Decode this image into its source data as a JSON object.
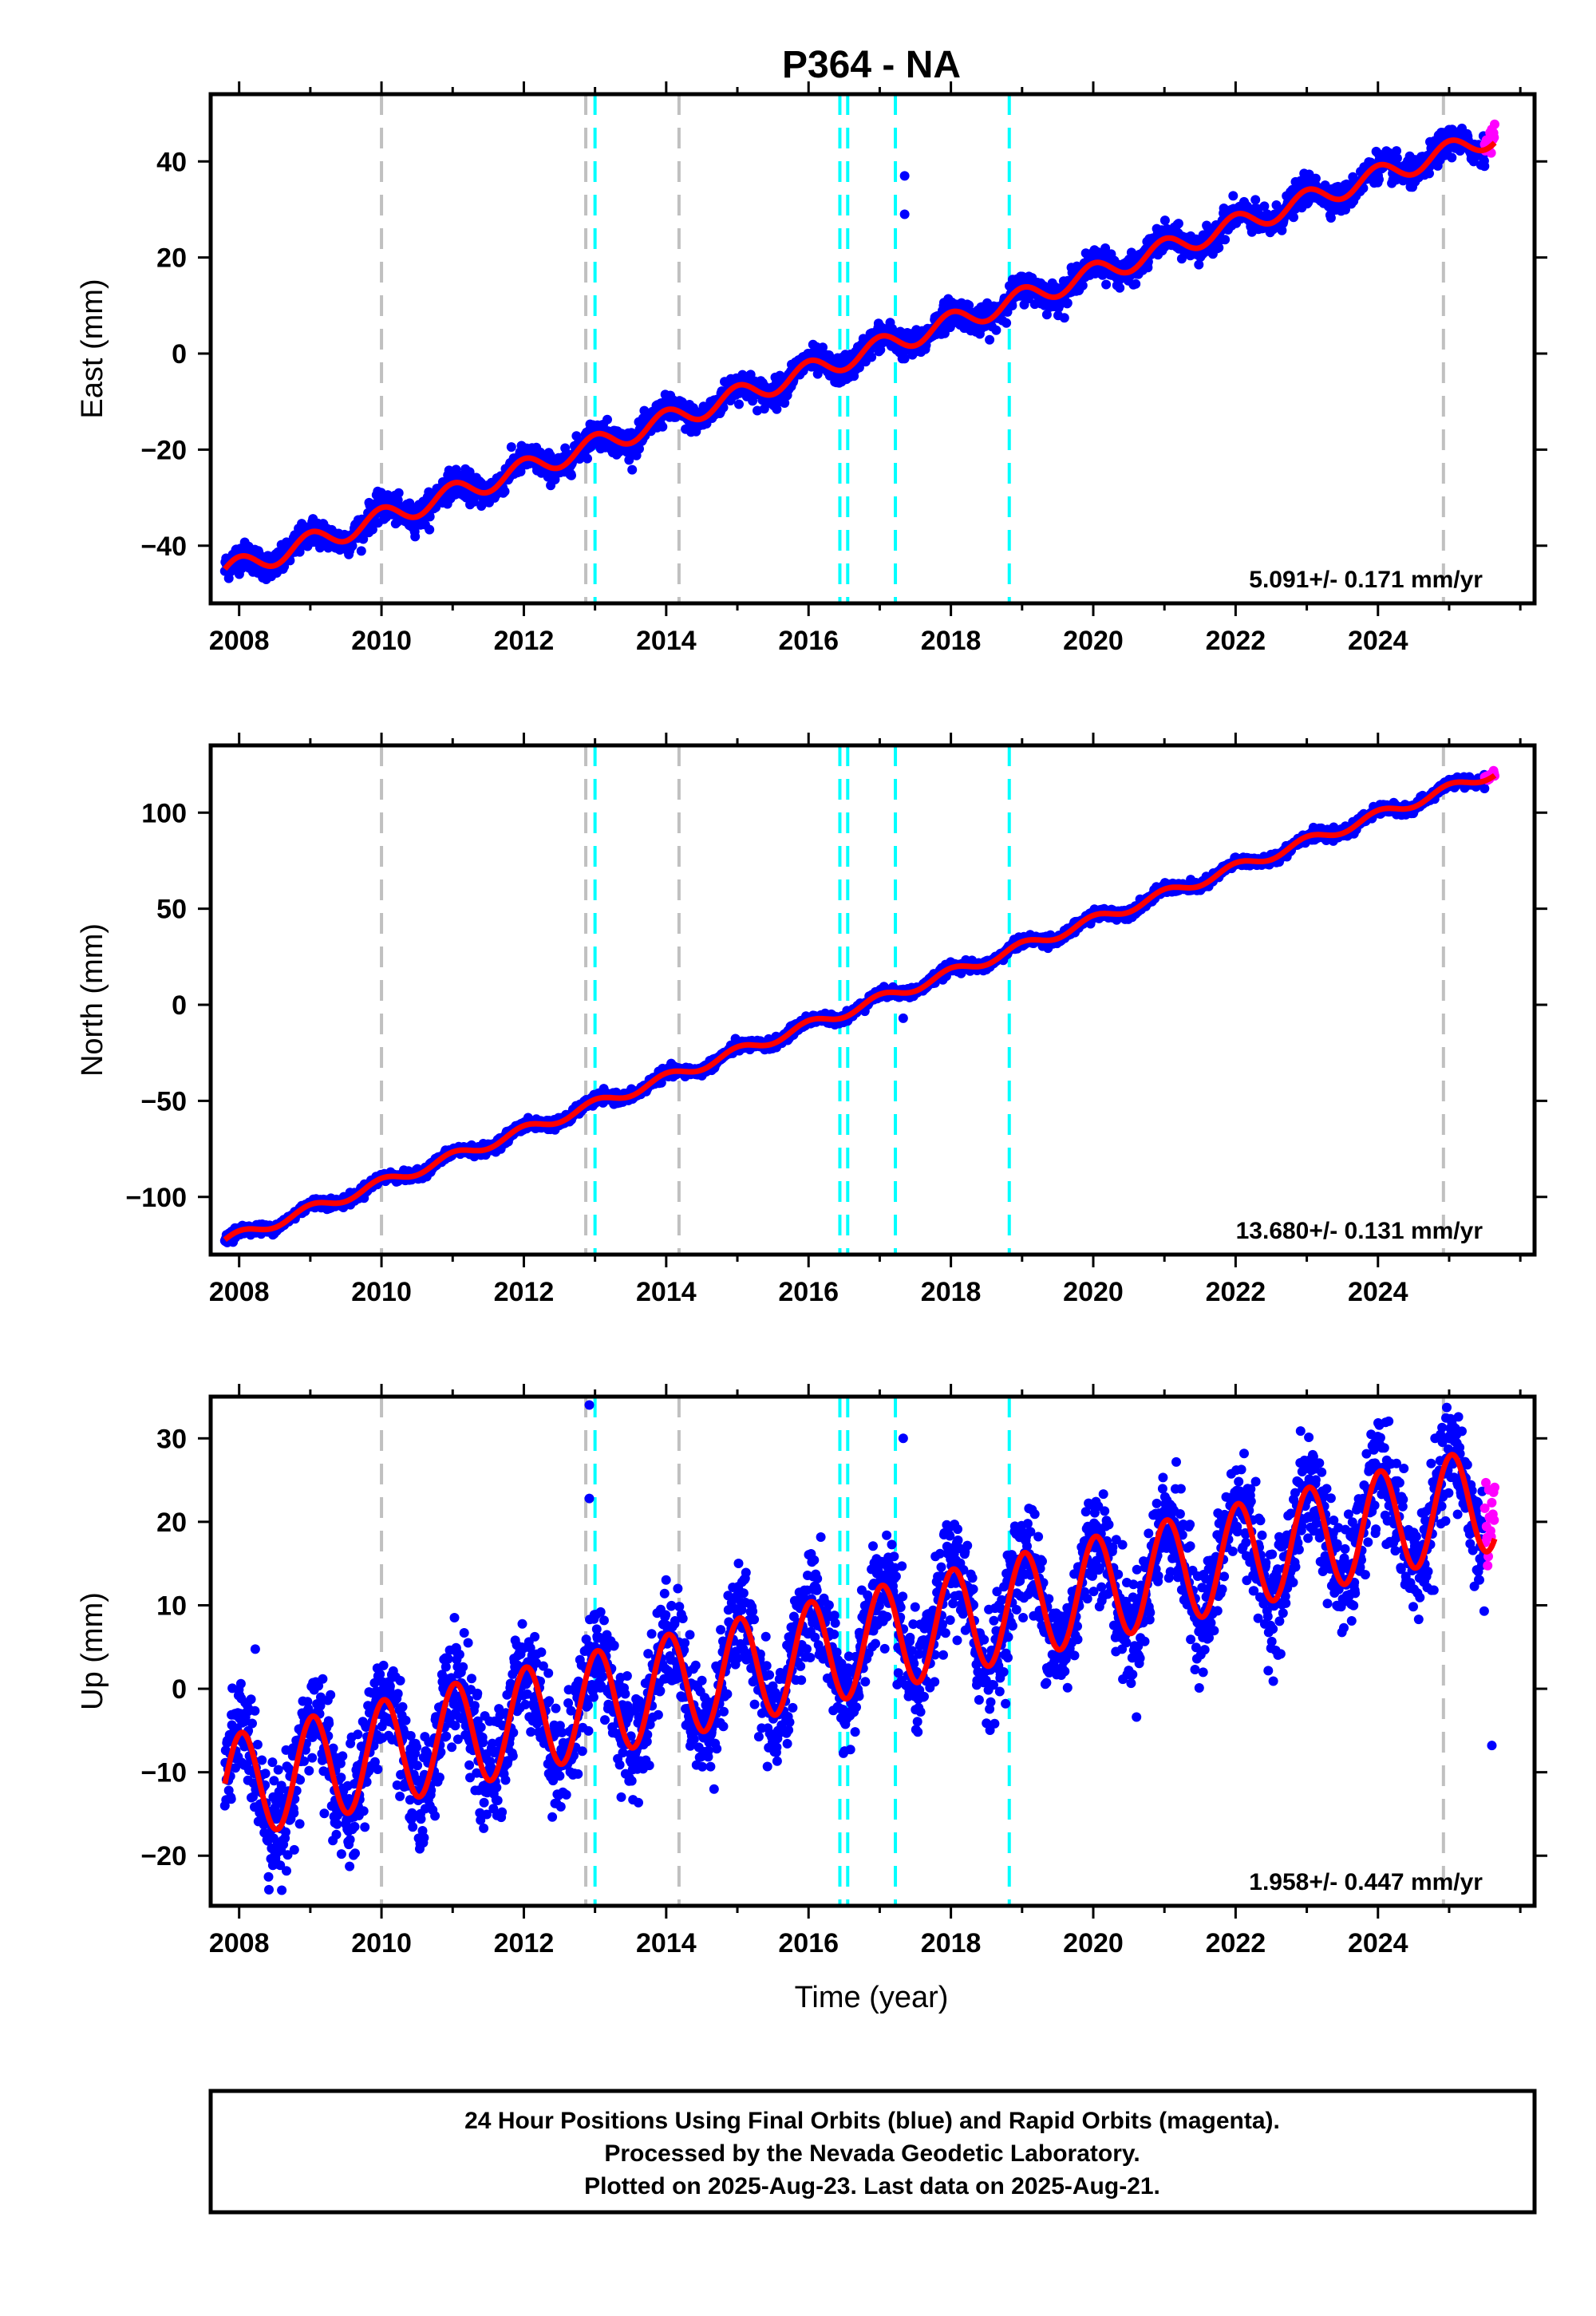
{
  "title": "P364 - NA",
  "xlabel": "Time (year)",
  "footer": {
    "lines": [
      "24 Hour Positions Using Final Orbits (blue) and Rapid Orbits (magenta).",
      "Processed by the Nevada Geodetic Laboratory.",
      "Plotted on 2025-Aug-23. Last data on 2025-Aug-21."
    ]
  },
  "colors": {
    "final_orbits": "#0000ff",
    "rapid_orbits": "#ff00ff",
    "model": "#ff0000",
    "equipment_change": "#c0c0c0",
    "earthquake": "#00ffff"
  },
  "chart_data": [
    {
      "type": "scatter",
      "component": "east",
      "ylabel": "East (mm)",
      "rate_label": "5.091+/- 0.171 mm/yr",
      "xlim": [
        2007.6,
        2026.2
      ],
      "ylim": [
        -52,
        54
      ],
      "x_ticks": [
        2008,
        2010,
        2012,
        2014,
        2016,
        2018,
        2020,
        2022,
        2024
      ],
      "y_ticks": [
        -40,
        -20,
        0,
        20,
        40
      ],
      "data_range": [
        2007.8,
        2025.64
      ],
      "model": {
        "intercept": -45.5,
        "rate": 5.091,
        "annual_amplitude": 2.2,
        "annual_phase": 0.3,
        "noise": 1.4,
        "ref_year": 2007.8
      },
      "outliers": [
        {
          "x": 2017.35,
          "y": 37
        },
        {
          "x": 2017.35,
          "y": 29
        }
      ]
    },
    {
      "type": "scatter",
      "component": "north",
      "ylabel": "North (mm)",
      "rate_label": "13.680+/- 0.131 mm/yr",
      "xlim": [
        2007.6,
        2026.2
      ],
      "ylim": [
        -130,
        135
      ],
      "x_ticks": [
        2008,
        2010,
        2012,
        2014,
        2016,
        2018,
        2020,
        2022,
        2024
      ],
      "y_ticks": [
        -100,
        -50,
        0,
        50,
        100
      ],
      "data_range": [
        2007.8,
        2025.64
      ],
      "model": {
        "intercept": -123,
        "rate": 13.68,
        "annual_amplitude": 2.6,
        "annual_phase": 0.3,
        "noise": 1.3,
        "ref_year": 2007.8
      },
      "outliers": [
        {
          "x": 2017.33,
          "y": 8
        },
        {
          "x": 2017.33,
          "y": -7
        }
      ]
    },
    {
      "type": "scatter",
      "component": "up",
      "ylabel": "Up (mm)",
      "rate_label": "1.958+/- 0.447 mm/yr",
      "xlim": [
        2007.6,
        2026.2
      ],
      "ylim": [
        -26,
        35
      ],
      "x_ticks": [
        2008,
        2010,
        2012,
        2014,
        2016,
        2018,
        2020,
        2022,
        2024
      ],
      "y_ticks": [
        -20,
        -10,
        0,
        10,
        20,
        30
      ],
      "data_range": [
        2007.8,
        2025.64
      ],
      "model": {
        "intercept": -12,
        "rate": 1.958,
        "annual_amplitude": 6.3,
        "annual_phase": 0.1,
        "noise": 3.2,
        "ref_year": 2007.8
      },
      "outliers": [
        {
          "x": 2012.92,
          "y": 34
        },
        {
          "x": 2012.92,
          "y": 22.8
        },
        {
          "x": 2017.33,
          "y": 30
        },
        {
          "x": 2025.6,
          "y": -6.8
        }
      ]
    }
  ],
  "event_lines": {
    "equipment": [
      2010.0,
      2012.87,
      2014.18,
      2024.92
    ],
    "earthquake": [
      2013.0,
      2016.44,
      2016.55,
      2017.22,
      2018.82
    ]
  },
  "rapid_orbits": {
    "x_start": 2025.5,
    "x_end": 2025.64
  }
}
